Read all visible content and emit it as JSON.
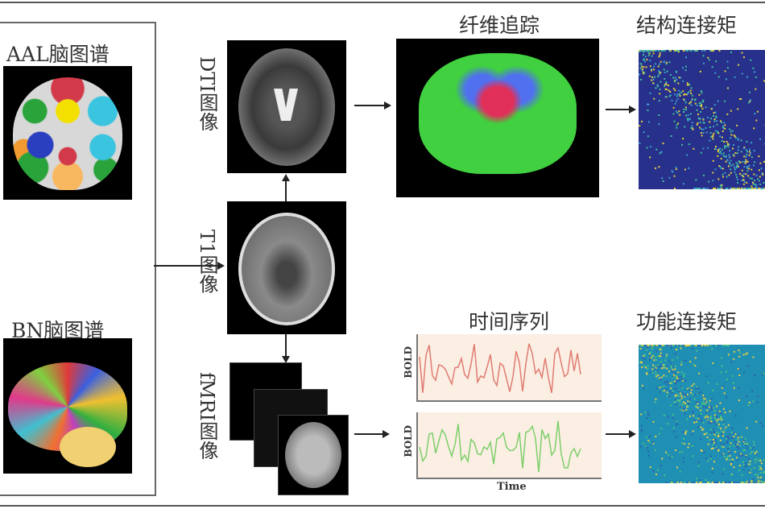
{
  "atlases": {
    "aal_title": "AAL脑图谱",
    "bn_title": "BN脑图谱"
  },
  "modalities": {
    "dti_label": "DTI图像",
    "t1_label": "T1图像",
    "fmri_label": "fMRI图像"
  },
  "structural": {
    "tracking_title": "纤维追踪",
    "matrix_title": "结构连接矩"
  },
  "functional": {
    "timeseries_title": "时间序列",
    "matrix_title": "功能连接矩",
    "ylabel_top": "BOLD",
    "ylabel_bottom": "BOLD",
    "xlabel": "Time"
  },
  "colors": {
    "bold_top": "#e07c72",
    "bold_bottom": "#7ccf6a",
    "plot_bg": "#fbeee3",
    "sc_matrix_bg": "#27308a",
    "fc_matrix_bg": "#1f8fb3"
  }
}
